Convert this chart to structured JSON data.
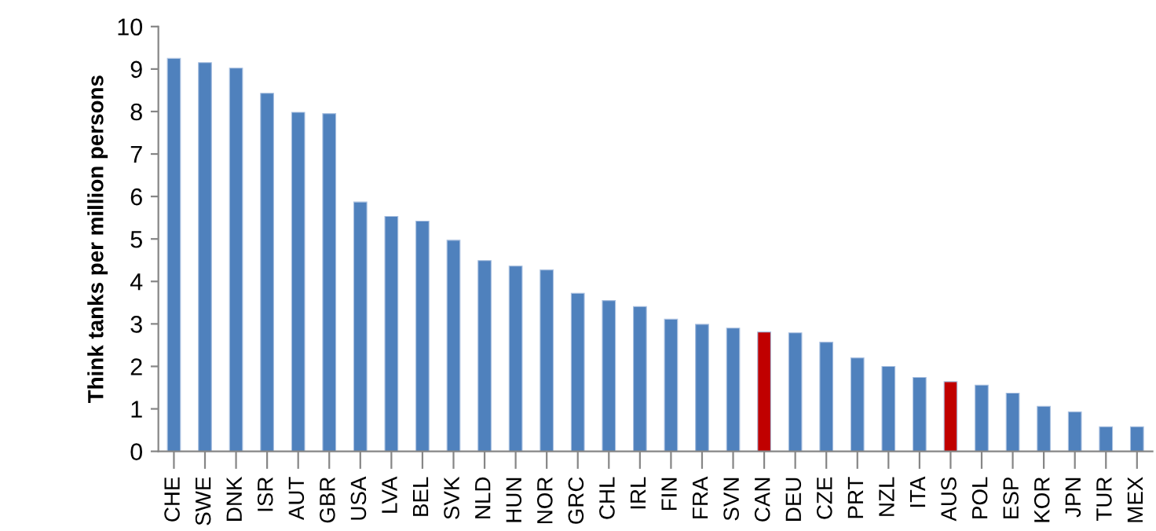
{
  "chart_data": {
    "type": "bar",
    "ylabel": "Think tanks per million persons",
    "categories": [
      "CHE",
      "SWE",
      "DNK",
      "ISR",
      "AUT",
      "GBR",
      "USA",
      "LVA",
      "BEL",
      "SVK",
      "NLD",
      "HUN",
      "NOR",
      "GRC",
      "CHL",
      "IRL",
      "FIN",
      "FRA",
      "SVN",
      "CAN",
      "DEU",
      "CZE",
      "PRT",
      "NZL",
      "ITA",
      "AUS",
      "POL",
      "ESP",
      "KOR",
      "JPN",
      "TUR",
      "MEX"
    ],
    "values": [
      9.25,
      9.15,
      9.02,
      8.43,
      7.98,
      7.95,
      5.87,
      5.53,
      5.42,
      4.97,
      4.49,
      4.36,
      4.27,
      3.72,
      3.55,
      3.41,
      3.11,
      2.99,
      2.9,
      2.81,
      2.79,
      2.57,
      2.2,
      2.0,
      1.74,
      1.64,
      1.56,
      1.37,
      1.06,
      0.93,
      0.58,
      0.58
    ],
    "colors": [
      "#4f81bd",
      "#4f81bd",
      "#4f81bd",
      "#4f81bd",
      "#4f81bd",
      "#4f81bd",
      "#4f81bd",
      "#4f81bd",
      "#4f81bd",
      "#4f81bd",
      "#4f81bd",
      "#4f81bd",
      "#4f81bd",
      "#4f81bd",
      "#4f81bd",
      "#4f81bd",
      "#4f81bd",
      "#4f81bd",
      "#4f81bd",
      "#c00000",
      "#4f81bd",
      "#4f81bd",
      "#4f81bd",
      "#4f81bd",
      "#4f81bd",
      "#c00000",
      "#4f81bd",
      "#4f81bd",
      "#4f81bd",
      "#4f81bd",
      "#4f81bd",
      "#4f81bd"
    ],
    "ylim": [
      0,
      10
    ],
    "yticks": [
      0,
      1,
      2,
      3,
      4,
      5,
      6,
      7,
      8,
      9,
      10
    ],
    "grid": false,
    "legend": false
  }
}
